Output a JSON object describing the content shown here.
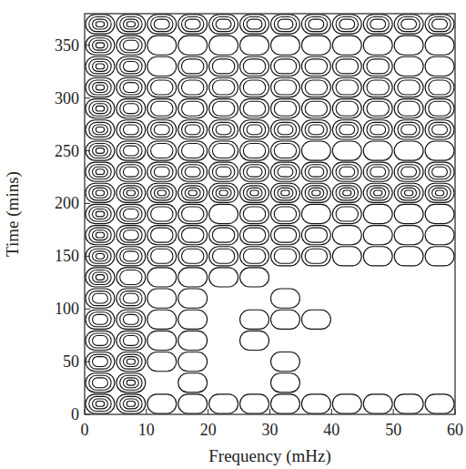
{
  "chart_data": {
    "type": "contour",
    "x_label": "Frequency (mHz)",
    "y_label": "Time (mins)",
    "xlim": [
      0,
      60
    ],
    "ylim": [
      0,
      380
    ],
    "xticks": [
      0,
      10,
      20,
      30,
      40,
      50,
      60
    ],
    "yticks": [
      0,
      50,
      100,
      150,
      200,
      250,
      300,
      350
    ],
    "x_bins": [
      0,
      5,
      10,
      15,
      20,
      25,
      30,
      35,
      40,
      45,
      50,
      55,
      60
    ],
    "y_bins": [
      0,
      20,
      40,
      60,
      80,
      100,
      120,
      140,
      160,
      180,
      200,
      220,
      240,
      260,
      280,
      300,
      320,
      340,
      360,
      380
    ],
    "cells": [
      [
        4,
        4,
        1,
        1,
        1,
        1,
        1,
        1,
        1,
        1,
        1,
        1
      ],
      [
        3,
        4,
        0,
        1,
        0,
        0,
        1,
        0,
        0,
        0,
        0,
        0
      ],
      [
        3,
        4,
        1,
        1,
        0,
        0,
        1,
        0,
        0,
        0,
        0,
        0
      ],
      [
        3,
        3,
        1,
        1,
        0,
        1,
        0,
        0,
        0,
        0,
        0,
        0
      ],
      [
        3,
        3,
        1,
        1,
        0,
        1,
        1,
        1,
        0,
        0,
        0,
        0
      ],
      [
        3,
        3,
        1,
        1,
        0,
        0,
        1,
        0,
        0,
        0,
        0,
        0
      ],
      [
        4,
        2,
        1,
        1,
        1,
        1,
        0,
        0,
        0,
        0,
        0,
        0
      ],
      [
        4,
        3,
        2,
        2,
        2,
        2,
        2,
        2,
        1,
        1,
        1,
        1
      ],
      [
        4,
        3,
        2,
        2,
        2,
        2,
        2,
        2,
        1,
        1,
        1,
        1
      ],
      [
        4,
        3,
        2,
        2,
        1,
        2,
        2,
        1,
        2,
        1,
        1,
        1
      ],
      [
        4,
        4,
        4,
        4,
        4,
        4,
        4,
        4,
        4,
        4,
        4,
        4
      ],
      [
        4,
        3,
        3,
        3,
        3,
        3,
        3,
        3,
        3,
        3,
        3,
        3
      ],
      [
        4,
        3,
        2,
        2,
        2,
        2,
        2,
        1,
        1,
        1,
        1,
        1
      ],
      [
        4,
        3,
        3,
        3,
        3,
        3,
        3,
        3,
        3,
        3,
        3,
        3
      ],
      [
        4,
        3,
        2,
        2,
        2,
        2,
        2,
        2,
        2,
        2,
        2,
        2
      ],
      [
        4,
        3,
        2,
        2,
        2,
        2,
        2,
        2,
        2,
        2,
        2,
        2
      ],
      [
        4,
        3,
        1,
        2,
        2,
        2,
        2,
        2,
        2,
        2,
        1,
        1
      ],
      [
        4,
        3,
        1,
        1,
        1,
        1,
        1,
        1,
        1,
        1,
        1,
        1
      ],
      [
        4,
        4,
        3,
        3,
        3,
        3,
        3,
        3,
        3,
        3,
        3,
        3
      ]
    ]
  }
}
